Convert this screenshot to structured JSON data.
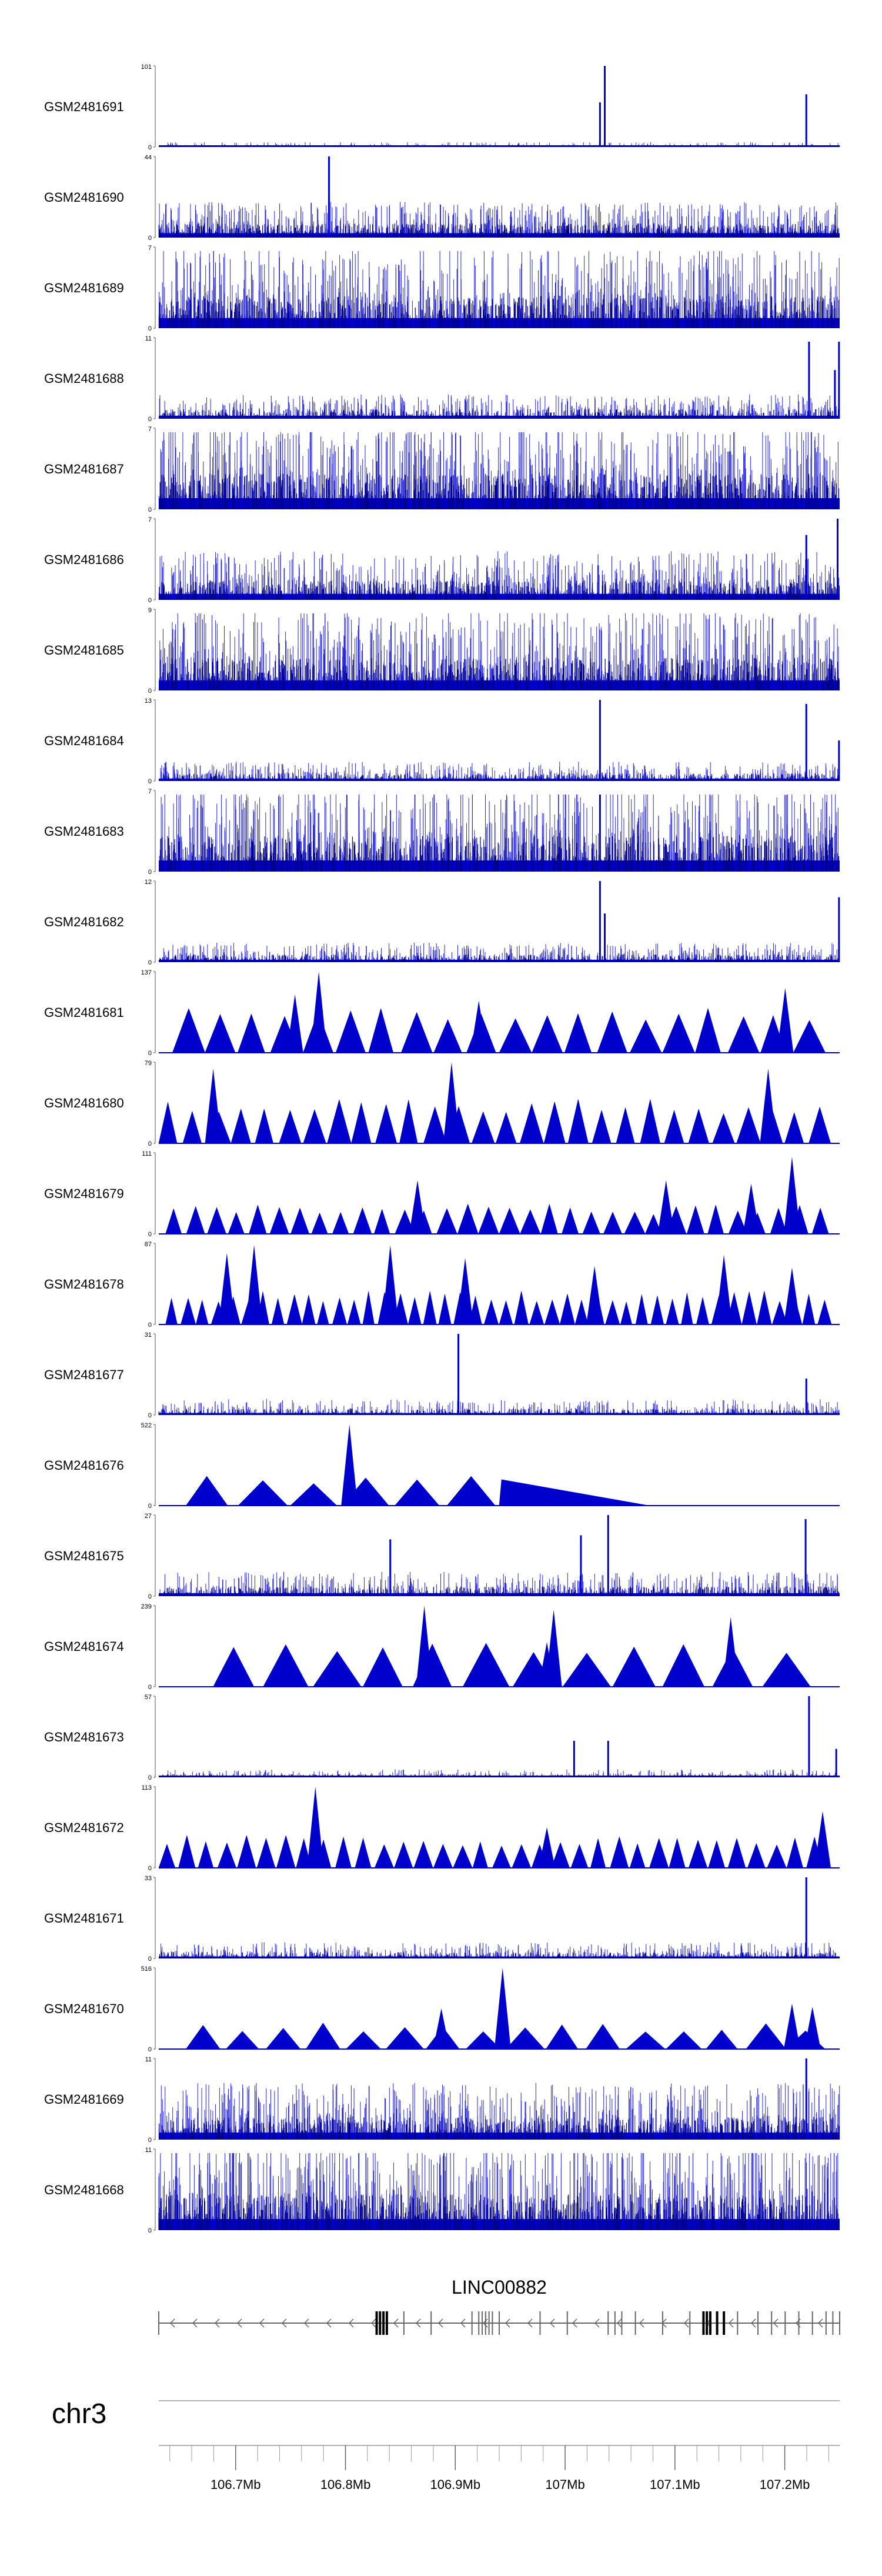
{
  "chart_data": {
    "type": "area",
    "tracks": [
      {
        "name": "GSM2481691",
        "ymin": "0",
        "ymax": "101",
        "style": "dense",
        "density": 0.3,
        "base": 0.03,
        "peaks": [
          [
            0.648,
            0.55
          ],
          [
            0.655,
            1.0
          ],
          [
            0.951,
            0.65
          ]
        ]
      },
      {
        "name": "GSM2481690",
        "ymin": "0",
        "ymax": "44",
        "style": "dense",
        "density": 0.75,
        "base": 0.22,
        "peaks": [
          [
            0.25,
            1.0
          ]
        ]
      },
      {
        "name": "GSM2481689",
        "ymin": "0",
        "ymax": "7",
        "style": "dense",
        "density": 0.8,
        "base": 0.5,
        "peaks": []
      },
      {
        "name": "GSM2481688",
        "ymin": "0",
        "ymax": "11",
        "style": "dense",
        "density": 0.55,
        "base": 0.15,
        "peaks": [
          [
            0.955,
            0.95
          ],
          [
            0.993,
            0.6
          ],
          [
            0.999,
            0.95
          ]
        ]
      },
      {
        "name": "GSM2481687",
        "ymin": "0",
        "ymax": "7",
        "style": "dense",
        "density": 0.85,
        "base": 0.55,
        "peaks": []
      },
      {
        "name": "GSM2481686",
        "ymin": "0",
        "ymax": "7",
        "style": "dense",
        "density": 0.7,
        "base": 0.3,
        "peaks": [
          [
            0.951,
            0.8
          ],
          [
            0.997,
            1.0
          ]
        ]
      },
      {
        "name": "GSM2481685",
        "ymin": "0",
        "ymax": "9",
        "style": "dense",
        "density": 0.8,
        "base": 0.5,
        "peaks": []
      },
      {
        "name": "GSM2481684",
        "ymin": "0",
        "ymax": "13",
        "style": "dense",
        "density": 0.55,
        "base": 0.12,
        "peaks": [
          [
            0.648,
            1.0
          ],
          [
            0.951,
            0.95
          ],
          [
            0.999,
            0.5
          ]
        ]
      },
      {
        "name": "GSM2481683",
        "ymin": "0",
        "ymax": "7",
        "style": "dense",
        "density": 0.8,
        "base": 0.55,
        "peaks": [
          [
            0.648,
            0.95
          ]
        ]
      },
      {
        "name": "GSM2481682",
        "ymin": "0",
        "ymax": "12",
        "style": "dense",
        "density": 0.55,
        "base": 0.12,
        "peaks": [
          [
            0.648,
            1.0
          ],
          [
            0.655,
            0.6
          ],
          [
            0.999,
            0.8
          ]
        ]
      },
      {
        "name": "GSM2481681",
        "ymin": "0",
        "ymax": "137",
        "style": "sparse",
        "tri": {
          "count": 20,
          "height": 0.48,
          "start": 0.02,
          "end": 0.98
        },
        "peaks": [
          [
            0.2,
            0.72
          ],
          [
            0.235,
            1.0
          ],
          [
            0.47,
            0.64
          ],
          [
            0.92,
            0.8
          ]
        ]
      },
      {
        "name": "GSM2481680",
        "ymin": "0",
        "ymax": "79",
        "style": "sparse",
        "tri": {
          "count": 28,
          "height": 0.48,
          "start": 0.0,
          "end": 0.99
        },
        "peaks": [
          [
            0.08,
            0.92
          ],
          [
            0.43,
            1.0
          ],
          [
            0.895,
            0.92
          ]
        ]
      },
      {
        "name": "GSM2481679",
        "ymin": "0",
        "ymax": "111",
        "style": "sparse",
        "tri": {
          "count": 32,
          "height": 0.32,
          "start": 0.01,
          "end": 0.99
        },
        "peaks": [
          [
            0.38,
            0.66
          ],
          [
            0.745,
            0.66
          ],
          [
            0.87,
            0.62
          ],
          [
            0.93,
            0.95
          ]
        ]
      },
      {
        "name": "GSM2481678",
        "ymin": "0",
        "ymax": "87",
        "style": "sparse",
        "tri": {
          "count": 44,
          "height": 0.36,
          "start": 0.01,
          "end": 0.99
        },
        "peaks": [
          [
            0.1,
            0.88
          ],
          [
            0.14,
            0.98
          ],
          [
            0.34,
            0.98
          ],
          [
            0.45,
            0.82
          ],
          [
            0.64,
            0.72
          ],
          [
            0.83,
            0.86
          ],
          [
            0.93,
            0.7
          ]
        ]
      },
      {
        "name": "GSM2481677",
        "ymin": "0",
        "ymax": "31",
        "style": "dense",
        "density": 0.45,
        "base": 0.1,
        "peaks": [
          [
            0.44,
            1.0
          ],
          [
            0.951,
            0.45
          ]
        ]
      },
      {
        "name": "GSM2481676",
        "ymin": "0",
        "ymax": "522",
        "style": "sparse",
        "tri": {
          "count": 6,
          "height": 0.32,
          "start": 0.04,
          "end": 0.5
        },
        "peaks": [
          [
            0.28,
            1.0
          ]
        ],
        "tail": [
          0.5,
          0.72,
          0.32
        ]
      },
      {
        "name": "GSM2481675",
        "ymin": "0",
        "ymax": "27",
        "style": "dense",
        "density": 0.55,
        "base": 0.15,
        "peaks": [
          [
            0.34,
            0.7
          ],
          [
            0.62,
            0.75
          ],
          [
            0.66,
            1.0
          ],
          [
            0.95,
            0.95
          ]
        ]
      },
      {
        "name": "GSM2481674",
        "ymin": "0",
        "ymax": "239",
        "style": "sparse",
        "tri": {
          "count": 12,
          "height": 0.5,
          "start": 0.08,
          "end": 0.96
        },
        "peaks": [
          [
            0.39,
            1.0
          ],
          [
            0.57,
            0.55
          ],
          [
            0.58,
            0.95
          ],
          [
            0.84,
            0.86
          ]
        ]
      },
      {
        "name": "GSM2481673",
        "ymin": "0",
        "ymax": "57",
        "style": "dense",
        "density": 0.35,
        "base": 0.05,
        "peaks": [
          [
            0.61,
            0.45
          ],
          [
            0.66,
            0.45
          ],
          [
            0.955,
            1.0
          ],
          [
            0.995,
            0.35
          ]
        ]
      },
      {
        "name": "GSM2481672",
        "ymin": "0",
        "ymax": "113",
        "style": "sparse",
        "tri": {
          "count": 34,
          "height": 0.36,
          "start": 0.0,
          "end": 0.98
        },
        "peaks": [
          [
            0.23,
            1.0
          ],
          [
            0.57,
            0.5
          ],
          [
            0.975,
            0.7
          ]
        ]
      },
      {
        "name": "GSM2481671",
        "ymin": "0",
        "ymax": "33",
        "style": "dense",
        "density": 0.5,
        "base": 0.1,
        "peaks": [
          [
            0.951,
            1.0
          ]
        ]
      },
      {
        "name": "GSM2481670",
        "ymin": "0",
        "ymax": "516",
        "style": "sparse",
        "tri": {
          "count": 16,
          "height": 0.28,
          "start": 0.04,
          "end": 0.98
        },
        "peaks": [
          [
            0.415,
            0.5
          ],
          [
            0.505,
            1.0
          ],
          [
            0.93,
            0.56
          ],
          [
            0.96,
            0.52
          ]
        ]
      },
      {
        "name": "GSM2481669",
        "ymin": "0",
        "ymax": "11",
        "style": "dense",
        "density": 0.75,
        "base": 0.35,
        "peaks": [
          [
            0.951,
            1.0
          ]
        ]
      },
      {
        "name": "GSM2481668",
        "ymin": "0",
        "ymax": "11",
        "style": "dense",
        "density": 0.85,
        "base": 0.55,
        "peaks": []
      }
    ],
    "gene": {
      "name": "LINC00882",
      "strand": "-"
    },
    "chromosome": "chr3",
    "x_range_mb": [
      106.63,
      107.25
    ],
    "x_ticks": [
      {
        "value": 106.7,
        "label": "106.7Mb"
      },
      {
        "value": 106.8,
        "label": "106.8Mb"
      },
      {
        "value": 106.9,
        "label": "106.9Mb"
      },
      {
        "value": 107.0,
        "label": "107Mb"
      },
      {
        "value": 107.1,
        "label": "107.1Mb"
      },
      {
        "value": 107.2,
        "label": "107.2Mb"
      }
    ],
    "colors": {
      "signal": "#0000cd",
      "signal_light": "#6a6ae0",
      "gene": "#666666",
      "axis": "#999999",
      "text": "#000000"
    }
  }
}
